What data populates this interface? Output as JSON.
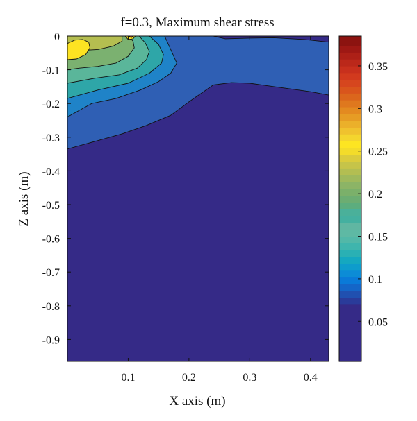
{
  "chart_data": {
    "type": "heatmap",
    "subtype": "filled-contour",
    "title": "f=0.3, Maximum shear stress",
    "xlabel": "X axis (m)",
    "ylabel": "Z axis (m)",
    "xlim": [
      0,
      0.43
    ],
    "ylim": [
      -0.965,
      0
    ],
    "xticks": [
      0.1,
      0.2,
      0.3,
      0.4
    ],
    "xtick_labels": [
      "0.1",
      "0.2",
      "0.3",
      "0.4"
    ],
    "yticks": [
      0,
      -0.1,
      -0.2,
      -0.3,
      -0.4,
      -0.5,
      -0.6,
      -0.7,
      -0.8,
      -0.9
    ],
    "ytick_labels": [
      "0",
      "-0.1",
      "-0.2",
      "-0.3",
      "-0.4",
      "-0.5",
      "-0.6",
      "-0.7",
      "-0.8",
      "-0.9"
    ],
    "grid": false,
    "colorbar": {
      "range": [
        0.003,
        0.385
      ],
      "ticks": [
        0.05,
        0.1,
        0.15,
        0.2,
        0.25,
        0.3,
        0.35
      ],
      "tick_labels": [
        "0.05",
        "0.1",
        "0.15",
        "0.2",
        "0.25",
        "0.3",
        "0.35"
      ],
      "levels": [
        {
          "from": 0.003,
          "to": 0.07,
          "color": "#352a87"
        },
        {
          "from": 0.07,
          "to": 0.078,
          "color": "#2a3b9a"
        },
        {
          "from": 0.078,
          "to": 0.086,
          "color": "#2050b0"
        },
        {
          "from": 0.086,
          "to": 0.094,
          "color": "#1466c8"
        },
        {
          "from": 0.094,
          "to": 0.102,
          "color": "#0a7ad8"
        },
        {
          "from": 0.102,
          "to": 0.11,
          "color": "#0c8cd6"
        },
        {
          "from": 0.11,
          "to": 0.118,
          "color": "#0e9ccc"
        },
        {
          "from": 0.118,
          "to": 0.126,
          "color": "#15a8c0"
        },
        {
          "from": 0.126,
          "to": 0.134,
          "color": "#2ab0b4"
        },
        {
          "from": 0.134,
          "to": 0.142,
          "color": "#3fb5ad"
        },
        {
          "from": 0.142,
          "to": 0.15,
          "color": "#52b8a8"
        },
        {
          "from": 0.15,
          "to": 0.158,
          "color": "#5eb9a4"
        },
        {
          "from": 0.158,
          "to": 0.166,
          "color": "#60b6a2"
        },
        {
          "from": 0.166,
          "to": 0.174,
          "color": "#44b0a0"
        },
        {
          "from": 0.174,
          "to": 0.182,
          "color": "#4ab09a"
        },
        {
          "from": 0.182,
          "to": 0.19,
          "color": "#5cad7e"
        },
        {
          "from": 0.19,
          "to": 0.198,
          "color": "#6cad72"
        },
        {
          "from": 0.198,
          "to": 0.206,
          "color": "#7bb06a"
        },
        {
          "from": 0.206,
          "to": 0.214,
          "color": "#8cb466"
        },
        {
          "from": 0.214,
          "to": 0.222,
          "color": "#9fb95c"
        },
        {
          "from": 0.222,
          "to": 0.23,
          "color": "#b3be52"
        },
        {
          "from": 0.23,
          "to": 0.238,
          "color": "#c6c449"
        },
        {
          "from": 0.238,
          "to": 0.246,
          "color": "#dbcc3c"
        },
        {
          "from": 0.246,
          "to": 0.254,
          "color": "#f3dc2a"
        },
        {
          "from": 0.254,
          "to": 0.262,
          "color": "#fde522"
        },
        {
          "from": 0.262,
          "to": 0.27,
          "color": "#f4d52e"
        },
        {
          "from": 0.27,
          "to": 0.278,
          "color": "#f0c22e"
        },
        {
          "from": 0.278,
          "to": 0.286,
          "color": "#ebb02a"
        },
        {
          "from": 0.286,
          "to": 0.294,
          "color": "#e69c24"
        },
        {
          "from": 0.294,
          "to": 0.302,
          "color": "#e38a20"
        },
        {
          "from": 0.302,
          "to": 0.31,
          "color": "#df781e"
        },
        {
          "from": 0.31,
          "to": 0.318,
          "color": "#db661c"
        },
        {
          "from": 0.318,
          "to": 0.326,
          "color": "#d9551c"
        },
        {
          "from": 0.326,
          "to": 0.334,
          "color": "#d6461e"
        },
        {
          "from": 0.334,
          "to": 0.342,
          "color": "#d23a1e"
        },
        {
          "from": 0.342,
          "to": 0.35,
          "color": "#c8301d"
        },
        {
          "from": 0.35,
          "to": 0.358,
          "color": "#bb281a"
        },
        {
          "from": 0.358,
          "to": 0.366,
          "color": "#ad2017"
        },
        {
          "from": 0.366,
          "to": 0.374,
          "color": "#9e1814"
        },
        {
          "from": 0.374,
          "to": 0.385,
          "color": "#8c1310"
        }
      ]
    },
    "regions": [
      {
        "level": 0.07,
        "color": "#2f5fb4",
        "boundary": [
          [
            0,
            0
          ],
          [
            0.24,
            0
          ],
          [
            0.26,
            -0.008
          ],
          [
            0.3,
            -0.006
          ],
          [
            0.34,
            -0.005
          ],
          [
            0.39,
            -0.01
          ],
          [
            0.43,
            -0.018
          ],
          [
            0.43,
            -0.175
          ],
          [
            0.4,
            -0.165
          ],
          [
            0.36,
            -0.155
          ],
          [
            0.3,
            -0.14
          ],
          [
            0.27,
            -0.138
          ],
          [
            0.24,
            -0.145
          ],
          [
            0.2,
            -0.195
          ],
          [
            0.17,
            -0.235
          ],
          [
            0.13,
            -0.265
          ],
          [
            0.09,
            -0.29
          ],
          [
            0.05,
            -0.31
          ],
          [
            0,
            -0.335
          ]
        ]
      },
      {
        "level": 0.12,
        "color": "#1f83c8",
        "boundary": [
          [
            0,
            0
          ],
          [
            0.16,
            0
          ],
          [
            0.17,
            -0.04
          ],
          [
            0.18,
            -0.08
          ],
          [
            0.17,
            -0.11
          ],
          [
            0.15,
            -0.135
          ],
          [
            0.12,
            -0.16
          ],
          [
            0.08,
            -0.185
          ],
          [
            0.04,
            -0.2
          ],
          [
            0,
            -0.24
          ]
        ]
      },
      {
        "level": 0.15,
        "color": "#2ea6a8",
        "boundary": [
          [
            0,
            0
          ],
          [
            0.135,
            0
          ],
          [
            0.15,
            -0.025
          ],
          [
            0.158,
            -0.055
          ],
          [
            0.155,
            -0.08
          ],
          [
            0.135,
            -0.11
          ],
          [
            0.1,
            -0.14
          ],
          [
            0.05,
            -0.16
          ],
          [
            0,
            -0.185
          ]
        ]
      },
      {
        "level": 0.18,
        "color": "#5ab69a",
        "boundary": [
          [
            0,
            0
          ],
          [
            0.118,
            0
          ],
          [
            0.128,
            -0.02
          ],
          [
            0.135,
            -0.045
          ],
          [
            0.13,
            -0.07
          ],
          [
            0.115,
            -0.095
          ],
          [
            0.085,
            -0.115
          ],
          [
            0.045,
            -0.125
          ],
          [
            0,
            -0.14
          ]
        ]
      },
      {
        "level": 0.21,
        "color": "#7bb170",
        "boundary": [
          [
            0,
            0
          ],
          [
            0.1,
            0
          ],
          [
            0.108,
            -0.015
          ],
          [
            0.11,
            -0.035
          ],
          [
            0.1,
            -0.06
          ],
          [
            0.08,
            -0.08
          ],
          [
            0.05,
            -0.09
          ],
          [
            0.02,
            -0.095
          ],
          [
            0,
            -0.1
          ]
        ]
      },
      {
        "level": 0.24,
        "color": "#b5be50",
        "boundary": [
          [
            0,
            0
          ],
          [
            0.09,
            0
          ],
          [
            0.09,
            -0.015
          ],
          [
            0.075,
            -0.03
          ],
          [
            0.05,
            -0.04
          ],
          [
            0.03,
            -0.042
          ],
          [
            0,
            -0.045
          ]
        ]
      },
      {
        "level": 0.26,
        "color": "#fde322",
        "boundary": [
          [
            0,
            -0.022
          ],
          [
            0.012,
            -0.012
          ],
          [
            0.025,
            -0.01
          ],
          [
            0.035,
            -0.018
          ],
          [
            0.037,
            -0.035
          ],
          [
            0.03,
            -0.055
          ],
          [
            0.015,
            -0.068
          ],
          [
            0,
            -0.07
          ]
        ]
      },
      {
        "level": 0.26,
        "color": "#fde322",
        "boundary": [
          [
            0.095,
            0
          ],
          [
            0.112,
            0
          ],
          [
            0.108,
            -0.008
          ],
          [
            0.1,
            -0.01
          ]
        ]
      },
      {
        "level": 0.33,
        "color": "#d5461e",
        "boundary": [
          [
            0.101,
            0
          ],
          [
            0.108,
            0
          ],
          [
            0.105,
            -0.005
          ]
        ]
      }
    ]
  }
}
